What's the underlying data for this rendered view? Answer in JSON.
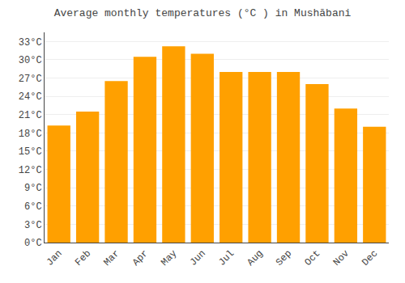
{
  "chart_data": {
    "type": "bar",
    "title": "Average monthly temperatures (°C ) in Mushābani",
    "categories": [
      "Jan",
      "Feb",
      "Mar",
      "Apr",
      "May",
      "Jun",
      "Jul",
      "Aug",
      "Sep",
      "Oct",
      "Nov",
      "Dec"
    ],
    "values": [
      19.2,
      21.5,
      26.5,
      30.5,
      32.2,
      31.0,
      28.0,
      28.0,
      28.0,
      26.0,
      22.0,
      19.0
    ],
    "color": "#FFA000",
    "ylim": [
      0,
      34.5
    ],
    "yticks": [
      {
        "value": 0,
        "label": "0°C"
      },
      {
        "value": 3,
        "label": "3°C"
      },
      {
        "value": 6,
        "label": "6°C"
      },
      {
        "value": 9,
        "label": "9°C"
      },
      {
        "value": 12,
        "label": "12°C"
      },
      {
        "value": 15,
        "label": "15°C"
      },
      {
        "value": 18,
        "label": "18°C"
      },
      {
        "value": 21,
        "label": "21°C"
      },
      {
        "value": 24,
        "label": "24°C"
      },
      {
        "value": 27,
        "label": "27°C"
      },
      {
        "value": 30,
        "label": "30°C"
      },
      {
        "value": 33,
        "label": "33°C"
      }
    ],
    "grid": true
  }
}
